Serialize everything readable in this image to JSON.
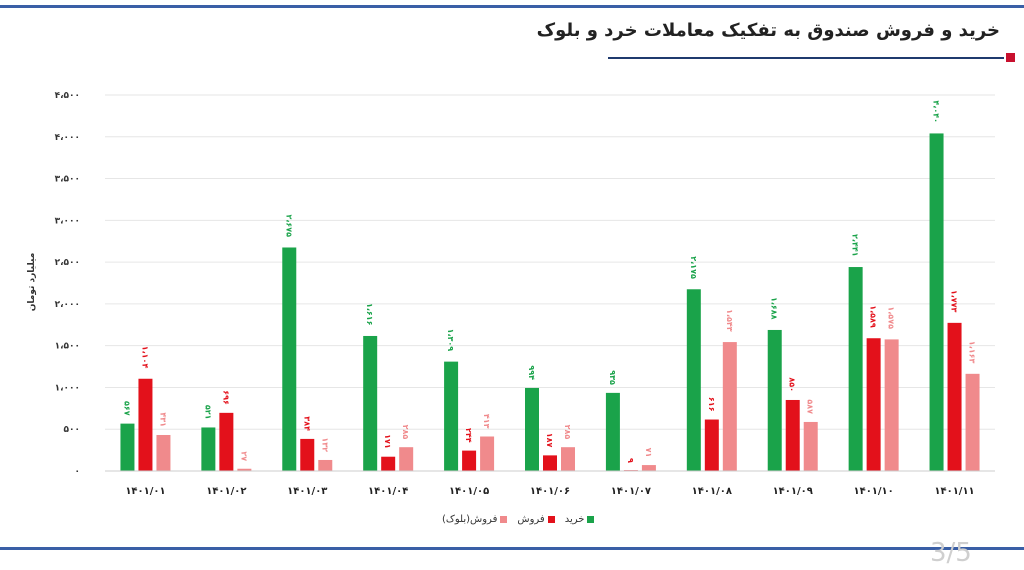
{
  "title": "خرید و فروش صندوق به تفکیک معاملات خرد و بلوک",
  "page_indicator": "3/5",
  "colors": {
    "frame": "#3a5fa6",
    "title_line": "#1f3a6e",
    "accent_square": "#c8102e",
    "buy": "#1aa34a",
    "sell": "#e3111b",
    "sell_block": "#f08a8c"
  },
  "chart_data": {
    "type": "bar",
    "ylabel": "میلیارد تومان",
    "ylim": [
      0,
      4500
    ],
    "yticks": [
      0,
      500,
      1000,
      1500,
      2000,
      2500,
      3000,
      3500,
      4000,
      4500
    ],
    "ytick_labels": [
      "۰",
      "۵۰۰",
      "۱،۰۰۰",
      "۱،۵۰۰",
      "۲،۰۰۰",
      "۲،۵۰۰",
      "۳،۰۰۰",
      "۳،۵۰۰",
      "۴،۰۰۰",
      "۴،۵۰۰"
    ],
    "categories": [
      "۱۴۰۱/۰۱",
      "۱۴۰۱/۰۲",
      "۱۴۰۱/۰۳",
      "۱۴۰۱/۰۴",
      "۱۴۰۱/۰۵",
      "۱۴۰۱/۰۶",
      "۱۴۰۱/۰۷",
      "۱۴۰۱/۰۸",
      "۱۴۰۱/۰۹",
      "۱۴۰۱/۱۰",
      "۱۴۰۱/۱۱"
    ],
    "series": [
      {
        "name": "خرید",
        "color": "#1aa34a",
        "values": [
          567,
          521,
          2675,
          1616,
          1309,
          994,
          935,
          2175,
          1688,
          2441,
          4040
        ],
        "labels": [
          "۵۶۷",
          "۵۲۱",
          "۲،۶۷۵",
          "۱،۶۱۶",
          "۱،۳۰۹",
          "۹۹۴",
          "۹۳۵",
          "۲،۱۷۵",
          "۱،۶۸۸",
          "۲،۴۴۱",
          "۴،۰۴۰"
        ]
      },
      {
        "name": "فروش",
        "color": "#e3111b",
        "values": [
          1104,
          696,
          384,
          171,
          244,
          187,
          9,
          616,
          850,
          1589,
          1773
        ],
        "labels": [
          "۱،۱۰۴",
          "۶۹۶",
          "۳۸۴",
          "۱۷۱",
          "۲۴۴",
          "۱۸۷",
          "۹",
          "۶۱۶",
          "۸۵۰",
          "۱،۵۸۹",
          "۱،۷۷۳"
        ]
      },
      {
        "name": "فروش(بلوک)",
        "color": "#f08a8c",
        "values": [
          431,
          27,
          132,
          285,
          413,
          285,
          71,
          1543,
          587,
          1575,
          1163
        ],
        "labels": [
          "۴۳۱",
          "۲۷",
          "۱۳۲",
          "۲۸۵",
          "۴۱۳",
          "۲۸۵",
          "۷۱",
          "۱،۵۴۳",
          "۵۸۷",
          "۱،۵۷۵",
          "۱،۱۶۳"
        ]
      }
    ],
    "grid": true,
    "legend_position": "bottom-center"
  }
}
